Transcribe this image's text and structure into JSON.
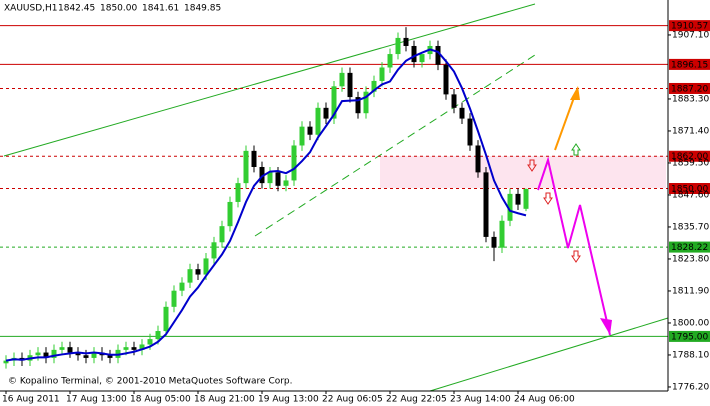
{
  "chart_data": {
    "type": "candlestick",
    "title": "XAUUSD,H1",
    "ohlc_labels": [
      "1842.45",
      "1850.00",
      "1841.61",
      "1849.85"
    ],
    "copyright": "© Kopalino Terminal, © 2001-2010 MetaQuotes Software Corp.",
    "categories": [
      "16 Aug 2011",
      null,
      null,
      null,
      null,
      null,
      null,
      null,
      "17 Aug 13:00",
      null,
      null,
      null,
      null,
      null,
      null,
      null,
      "18 Aug 05:00",
      null,
      null,
      null,
      null,
      null,
      null,
      null,
      "18 Aug 21:00",
      null,
      null,
      null,
      null,
      null,
      null,
      null,
      "19 Aug 13:00",
      null,
      null,
      null,
      null,
      null,
      null,
      null,
      "22 Aug 06:05",
      null,
      null,
      null,
      null,
      null,
      null,
      null,
      "22 Aug 22:05",
      null,
      null,
      null,
      null,
      null,
      null,
      null,
      "23 Aug 14:00",
      null,
      null,
      null,
      null,
      null,
      null,
      null,
      "24 Aug 06:00",
      null
    ],
    "open": [
      1785,
      1786,
      1787,
      1786,
      1788,
      1789,
      1787,
      1790,
      1791,
      1789,
      1788,
      1787,
      1789,
      1788,
      1787,
      1790,
      1791,
      1790,
      1792,
      1794,
      1797,
      1806,
      1812,
      1815,
      1820,
      1818,
      1824,
      1830,
      1836,
      1845,
      1852,
      1864,
      1858,
      1852,
      1856,
      1851,
      1853,
      1866,
      1873,
      1870,
      1880,
      1876,
      1888,
      1893,
      1884,
      1878,
      1886,
      1890,
      1895,
      1900,
      1906,
      1903,
      1897,
      1900,
      1903,
      1896,
      1885,
      1880,
      1876,
      1866,
      1856,
      1832,
      1828,
      1838,
      1848,
      1842.45
    ],
    "high": [
      1788,
      1789,
      1789,
      1790,
      1791,
      1791,
      1792,
      1793,
      1793,
      1791,
      1790,
      1791,
      1791,
      1790,
      1792,
      1793,
      1793,
      1794,
      1796,
      1799,
      1808,
      1814,
      1817,
      1822,
      1822,
      1826,
      1832,
      1838,
      1847,
      1854,
      1866,
      1866,
      1860,
      1858,
      1858,
      1855,
      1868,
      1875,
      1875,
      1882,
      1882,
      1890,
      1895,
      1895,
      1886,
      1888,
      1892,
      1897,
      1902,
      1908,
      1910,
      1905,
      1899,
      1905,
      1905,
      1898,
      1887,
      1882,
      1878,
      1868,
      1858,
      1834,
      1840,
      1850,
      1850,
      1850.0
    ],
    "low": [
      1783,
      1784,
      1784,
      1784,
      1786,
      1785,
      1785,
      1788,
      1787,
      1786,
      1785,
      1785,
      1786,
      1785,
      1785,
      1788,
      1788,
      1788,
      1790,
      1792,
      1795,
      1804,
      1810,
      1813,
      1816,
      1816,
      1822,
      1828,
      1834,
      1843,
      1850,
      1856,
      1850,
      1850,
      1849,
      1849,
      1851,
      1864,
      1868,
      1868,
      1874,
      1874,
      1886,
      1882,
      1876,
      1876,
      1884,
      1888,
      1893,
      1898,
      1901,
      1895,
      1895,
      1898,
      1894,
      1883,
      1878,
      1874,
      1864,
      1854,
      1830,
      1823,
      1826,
      1836,
      1842,
      1841.61
    ],
    "close": [
      1786,
      1787,
      1786,
      1788,
      1789,
      1787,
      1790,
      1791,
      1789,
      1788,
      1787,
      1789,
      1788,
      1787,
      1790,
      1791,
      1790,
      1792,
      1794,
      1797,
      1806,
      1812,
      1815,
      1820,
      1818,
      1824,
      1830,
      1836,
      1845,
      1852,
      1864,
      1858,
      1852,
      1856,
      1851,
      1853,
      1866,
      1873,
      1870,
      1880,
      1876,
      1888,
      1893,
      1884,
      1878,
      1886,
      1890,
      1895,
      1900,
      1906,
      1903,
      1897,
      1900,
      1903,
      1896,
      1885,
      1880,
      1876,
      1866,
      1856,
      1832,
      1828,
      1838,
      1848,
      1844,
      1849.85
    ],
    "bull_color": "#32cd32",
    "bear_color": "#000000",
    "moving_average": {
      "color": "#0000cc",
      "values": [
        1786,
        1786.5,
        1786.3,
        1786.8,
        1787.2,
        1787.2,
        1787.8,
        1788.3,
        1788.7,
        1789,
        1788.7,
        1789,
        1788.7,
        1788.2,
        1788.2,
        1788.7,
        1789.3,
        1790.2,
        1791.2,
        1793,
        1795.8,
        1800.3,
        1804.8,
        1809.8,
        1813.2,
        1817.5,
        1821.5,
        1825.5,
        1830.5,
        1837.5,
        1845,
        1851,
        1854.5,
        1856.3,
        1856.5,
        1855.7,
        1857.3,
        1860.2,
        1863.5,
        1869,
        1873.2,
        1877.5,
        1882.5,
        1882.7,
        1882.8,
        1884,
        1886.5,
        1888.7,
        1889.8,
        1894.2,
        1897.5,
        1899.2,
        1900.5,
        1901.7,
        1900.8,
        1897.3,
        1893.5,
        1887.3,
        1879.7,
        1871.3,
        1862.5,
        1853,
        1846.7,
        1841.7,
        1840.8,
        1840
      ]
    },
    "levels": [
      {
        "value": 1910.57,
        "color": "#cc0000",
        "dashed": false
      },
      {
        "value": 1896.15,
        "color": "#cc0000",
        "dashed": false
      },
      {
        "value": 1887.2,
        "label": "1887.20",
        "color": "#cc0000",
        "dashed": true
      },
      {
        "value": 1862,
        "label": "1862.00",
        "color": "#cc0000",
        "dashed": true
      },
      {
        "value": 1850,
        "label": "1850.00",
        "color": "#cc0000",
        "dashed": true
      },
      {
        "value": 1828.22,
        "color": "#22aa22",
        "dashed": true
      },
      {
        "value": 1795,
        "label": "1795.00",
        "color": "#22aa22",
        "dashed": false
      }
    ],
    "ylim": [
      1774.7,
      1920.1
    ],
    "yticks": [
      {
        "value": 1907.1,
        "label": "1907.10"
      },
      {
        "value": 1883.3,
        "label": "1883.30"
      },
      {
        "value": 1871.4,
        "label": "1871.40"
      },
      {
        "value": 1859.5,
        "label": "1859.50"
      },
      {
        "value": 1847.6,
        "label": "1847.60"
      },
      {
        "value": 1835.7,
        "label": "1835.70"
      },
      {
        "value": 1823.8,
        "label": "1823.80"
      },
      {
        "value": 1811.9,
        "label": "1811.90"
      },
      {
        "value": 1800,
        "label": "1800.00"
      },
      {
        "value": 1788.1,
        "label": "1788.10"
      },
      {
        "value": 1776.2,
        "label": "1776.20"
      }
    ]
  }
}
